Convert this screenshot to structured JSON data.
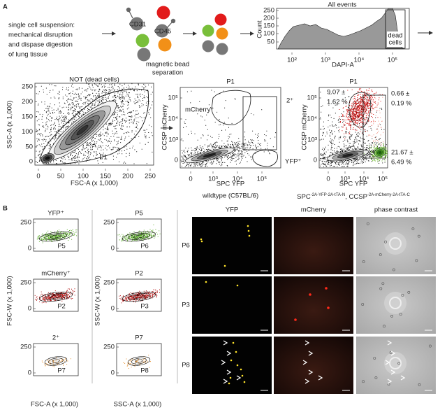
{
  "panel_a": {
    "label": "A",
    "protocol_text": [
      "single cell suspension:",
      "mechanical disruption",
      "and dispase digestion",
      "of lung tissue"
    ],
    "antibodies": [
      "CD31",
      "CD45"
    ],
    "separation_text": [
      "magnetic bead",
      "separation"
    ],
    "histogram": {
      "title": "All events",
      "y_label": "Count",
      "y_ticks": [
        "250",
        "200",
        "150",
        "100",
        "50"
      ],
      "x_ticks": [
        "10²",
        "10³",
        "10⁴",
        "10⁵"
      ],
      "x_label": "DAPI-A",
      "gate_label": [
        "dead",
        "cells"
      ]
    },
    "scatter_ssc": {
      "title": "NOT (dead cells)",
      "y_label": "SSC-A (x 1,000)",
      "x_label": "FSC-A (x 1,000)",
      "y_ticks": [
        "250",
        "200",
        "150",
        "100",
        "50",
        "0"
      ],
      "x_ticks": [
        "0",
        "50",
        "100",
        "150",
        "200",
        "250"
      ],
      "gate": "P1"
    },
    "scatter_wildtype": {
      "title": "P1",
      "y_label": "CCSP mCherry",
      "x_label": "SPC YFP",
      "y_ticks": [
        "10⁵",
        "10⁴",
        "10³",
        "0"
      ],
      "x_ticks": [
        "0",
        "10³",
        "10⁴",
        "10⁵"
      ],
      "gates": [
        "mCherry⁺",
        "2⁺",
        "YFP⁺"
      ],
      "caption": "wildtype (C57BL/6)"
    },
    "scatter_transgenic": {
      "title": "P1",
      "y_label": "CCSP mCherry",
      "x_label": "SPC YFP",
      "y_ticks": [
        "10⁵",
        "10⁴",
        "10³",
        "0"
      ],
      "x_ticks": [
        "0",
        "10³",
        "10⁴",
        "10⁵"
      ],
      "stats": {
        "mcherry": [
          "9.07 ±",
          "1.62 %"
        ],
        "double": [
          "0.66 ±",
          "0.19 %"
        ],
        "yfp": [
          "21.67 ±",
          "6.49 %"
        ]
      },
      "caption": [
        {
          "text": "SPC"
        },
        {
          "sup": "-2A-YFP-2A-tTA-N"
        },
        {
          "text": ", CCSP"
        },
        {
          "sup": "-2A-mCherry-2A-tTA-C"
        }
      ]
    }
  },
  "panel_b": {
    "label": "B",
    "fsc_column": {
      "y_label": "FSC-W (x 1,000)",
      "x_label": "FSC-A (x 1,000)",
      "y_ticks": [
        "250",
        "0"
      ],
      "plots": [
        {
          "title": "YFP⁺",
          "gate": "P5"
        },
        {
          "title": "mCherry⁺",
          "gate": "P2"
        },
        {
          "title": "2⁺",
          "gate": "P7"
        }
      ]
    },
    "ssc_column": {
      "y_label": "SSC-W (x 1,000)",
      "x_label": "SSC-A (x 1,000)",
      "y_ticks": [
        "250",
        "0"
      ],
      "plots": [
        {
          "title": "P5",
          "gate": "P6"
        },
        {
          "title": "P2",
          "gate": "P3"
        },
        {
          "title": "P7",
          "gate": "P8"
        }
      ]
    },
    "microscopy": {
      "columns": [
        "YFP",
        "mCherry",
        "phase contrast"
      ],
      "rows": [
        "P6",
        "P3",
        "P8"
      ]
    }
  }
}
